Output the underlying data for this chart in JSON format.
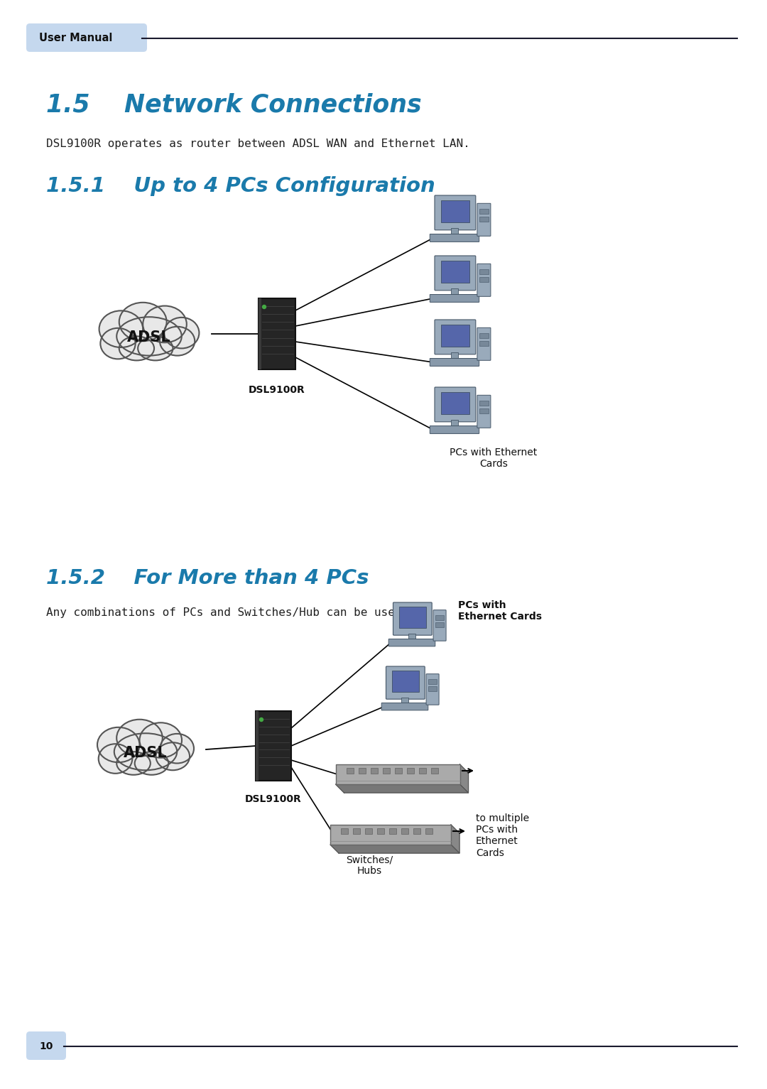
{
  "page_bg": "#ffffff",
  "header_label": "User Manual",
  "header_bg": "#c5d8ee",
  "header_line_color": "#1a1a2e",
  "footer_page": "10",
  "footer_bg": "#c5d8ee",
  "section_title": "1.5    Network Connections",
  "section_title_color": "#1a7aab",
  "subsection1_title": "1.5.1    Up to 4 PCs Configuration",
  "subsection1_color": "#1a7aab",
  "subsection2_title": "1.5.2    For More than 4 PCs",
  "subsection2_color": "#1a7aab",
  "body_text1": "DSL9100R operates as router between ADSL WAN and Ethernet LAN.",
  "body_text2": "Any combinations of PCs and Switches/Hub can be used.",
  "diagram1_adsl_label": "ADSL",
  "diagram1_router_label": "DSL9100R",
  "diagram1_pc_label": "PCs with Ethernet\nCards",
  "diagram2_adsl_label": "ADSL",
  "diagram2_router_label": "DSL9100R",
  "diagram2_pc_label": "PCs with\nEthernet Cards",
  "diagram2_switch_label": "Switches/\nHubs",
  "diagram2_multi_label": "to multiple\nPCs with\nEthernet\nCards",
  "line_color": "#000000",
  "cloud_fill": "#e8e8e8",
  "cloud_stroke": "#555555",
  "router_color": "#2a2a2a",
  "pc_monitor_color": "#8899aa",
  "pc_body_color": "#99aabb",
  "pc_keyboard_color": "#778899",
  "switch_top_color": "#aaaaaa",
  "switch_side_color": "#888888"
}
